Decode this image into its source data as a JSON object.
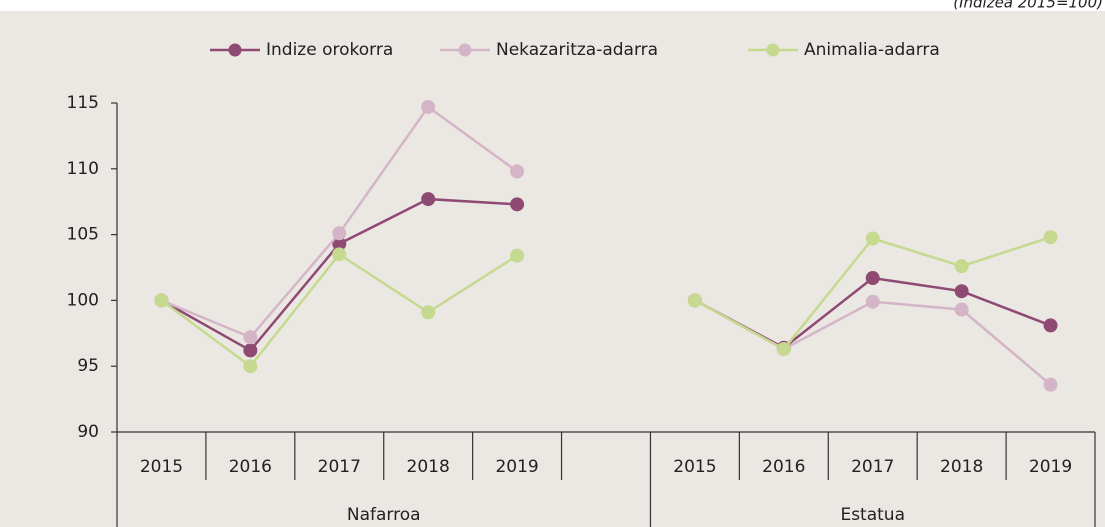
{
  "chart_data": {
    "type": "line",
    "subtitle": "(Indizea 2015=100)",
    "categories": [
      "2015",
      "2016",
      "2017",
      "2018",
      "2019",
      null,
      "2015",
      "2016",
      "2017",
      "2018",
      "2019"
    ],
    "groups": [
      "Nafarroa",
      "Estatua"
    ],
    "series": [
      {
        "name": "Indize orokorra",
        "color": "#8e4a73",
        "values": [
          100,
          96.2,
          104.3,
          107.7,
          107.3,
          null,
          100,
          96.4,
          101.7,
          100.7,
          98.1
        ]
      },
      {
        "name": "Nekazaritza-adarra",
        "color": "#d4b5c8",
        "values": [
          100,
          97.2,
          105.1,
          114.7,
          109.8,
          null,
          100,
          96.3,
          99.9,
          99.3,
          93.6
        ]
      },
      {
        "name": "Animalia-adarra",
        "color": "#c5d98f",
        "values": [
          100,
          95.0,
          103.5,
          99.1,
          103.4,
          null,
          100,
          96.3,
          104.7,
          102.6,
          104.8
        ]
      }
    ],
    "ylim": [
      90,
      115
    ],
    "yticks": [
      90,
      95,
      100,
      105,
      110,
      115
    ],
    "legend": "top",
    "grid": false
  }
}
